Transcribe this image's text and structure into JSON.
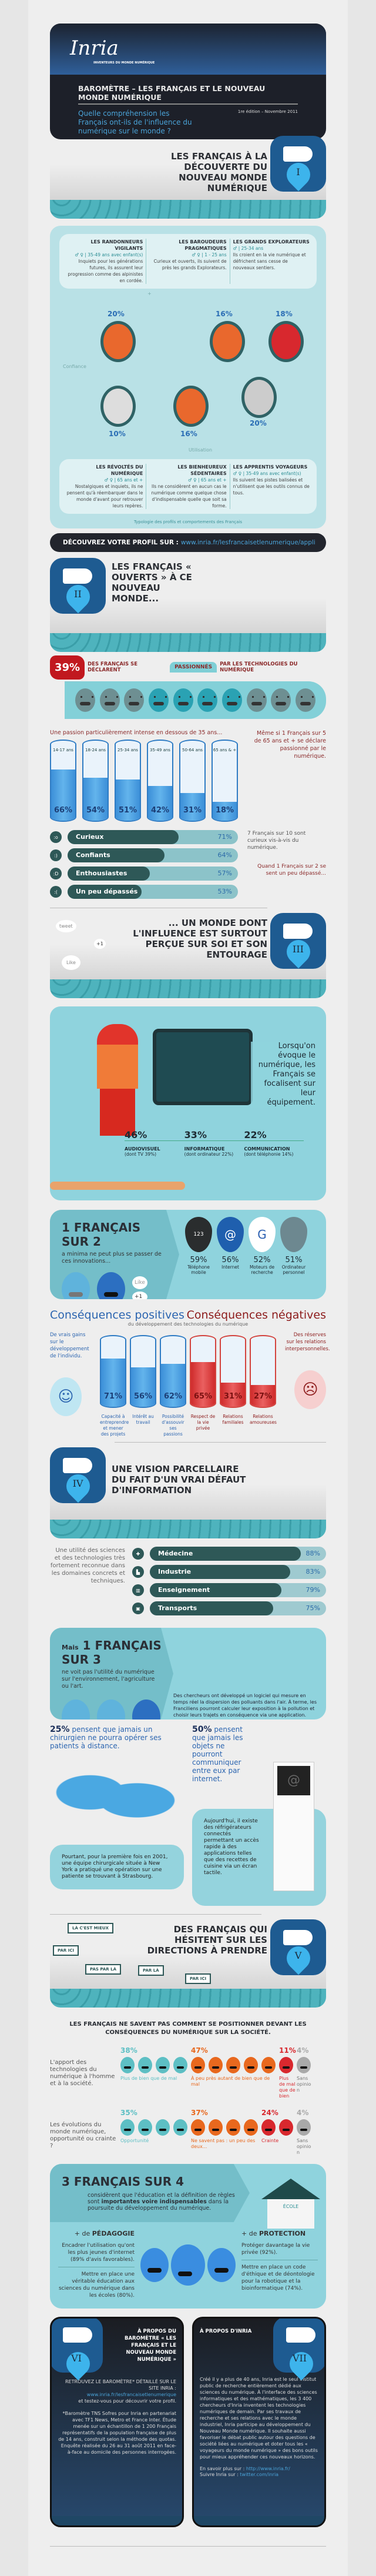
{
  "header": {
    "logo": "Inria",
    "logo_tagline": "INVENTEURS DU MONDE NUMÉRIQUE",
    "title": "BAROMÈTRE – LES FRANÇAIS ET LE NOUVEAU MONDE NUMÉRIQUE",
    "question": "Quelle compréhension les Français ont-ils de l'influence du numérique sur le monde ?",
    "edition": "1re édition – Novembre 2011"
  },
  "sections": [
    {
      "num": "I",
      "title": "LES FRANÇAIS À LA DÉCOUVERTE DU NOUVEAU MONDE NUMÉRIQUE"
    },
    {
      "num": "II",
      "title": "LES FRANÇAIS « OUVERTS » À CE NOUVEAU MONDE..."
    },
    {
      "num": "III",
      "title": "... UN MONDE DONT L'INFLUENCE EST SURTOUT PERÇUE SUR SOI ET SON ENTOURAGE"
    },
    {
      "num": "IV",
      "title": "UNE VISION PARCELLAIRE DU FAIT D'UN VRAI DÉFAUT D'INFORMATION"
    },
    {
      "num": "V",
      "title": "DES FRANÇAIS QUI HÉSITENT SUR LES DIRECTIONS À PRENDRE"
    }
  ],
  "typology": {
    "profiles_top": [
      {
        "name": "LES RANDONNEURS VIGILANTS",
        "meta": "♂ ♀ | 35-49 ans avec enfant(s)",
        "desc": "Inquiets pour les générations futures, ils assurent leur progression comme des alpinistes en cordée.",
        "pct": "20%"
      },
      {
        "name": "LES BAROUDEURS PRAGMATIQUES",
        "meta": "♂ ♀ | 1 - 25 ans",
        "desc": "Curieux et ouverts, ils suivent de près les grands Explorateurs.",
        "pct": "16%"
      },
      {
        "name": "LES GRANDS EXPLORATEURS",
        "meta": "♂ | 25-34 ans",
        "desc": "Ils croient en la vie numérique et défrichent sans cesse de nouveaux sentiers.",
        "pct": "18%"
      }
    ],
    "profiles_bottom": [
      {
        "name": "LES RÉVOLTÉS DU NUMÉRIQUE",
        "meta": "♂ ♀ | 65 ans et +",
        "desc": "Nostalgiques et inquiets, ils ne pensent qu'à réembarquer dans le monde d'avant pour retrouver leurs repères.",
        "pct": "10%"
      },
      {
        "name": "LES BIENHEUREUX SÉDENTAIRES",
        "meta": "♂ ♀ | 65 ans et +",
        "desc": "Ils ne considèrent en aucun cas le numérique comme quelque chose d'indispensable quelle que soit sa forme.",
        "pct": "16%"
      },
      {
        "name": "LES APPRENTIS VOYAGEURS",
        "meta": "♂ ♀ | 35-49 ans avec enfant(s)",
        "desc": "Ils suivent les pistes balisées et n'utilisent que les outils connus de tous.",
        "pct": "20%"
      }
    ],
    "axis_plus": "+",
    "axis_minus": "–",
    "axis_confiance": "Confiance",
    "axis_utilisation": "Utilisation",
    "caption": "Typologie des profils et comportements des Français"
  },
  "discover": {
    "label": "DÉCOUVREZ VOTRE PROFIL SUR :",
    "url": "www.inria.fr/lesfrancaisetlenumerique/appli"
  },
  "passion": {
    "pct": "39%",
    "pre": "DES FRANÇAIS SE DÉCLARENT",
    "word": "PASSIONNÉS",
    "post": "PAR LES TECHNOLOGIES DU NUMÉRIQUE",
    "faces_total": 10,
    "faces_on": [
      3,
      4,
      5,
      6
    ],
    "age_title": "Une passion particulièrement intense en dessous de 35 ans...",
    "age_groups": [
      {
        "label": "14-17 ans",
        "value": 66
      },
      {
        "label": "18-24 ans",
        "value": 54
      },
      {
        "label": "25-34 ans",
        "value": 51
      },
      {
        "label": "35-49 ans",
        "value": 42
      },
      {
        "label": "50-64 ans",
        "value": 31
      },
      {
        "label": "65 ans & +",
        "value": 18
      }
    ],
    "side_note": "Même si 1 Français sur 5 de 65 ans et + se déclare passionné par le numérique."
  },
  "moods": {
    "items": [
      {
        "icon": ":o",
        "label": "Curieux",
        "value": 71
      },
      {
        "icon": ":)",
        "label": "Confiants",
        "value": 64
      },
      {
        "icon": ":D",
        "label": "Enthousiastes",
        "value": 57
      },
      {
        "icon": ":(",
        "label": "Un peu dépassés",
        "value": 53
      }
    ],
    "note1": "7 Français sur 10 sont curieux vis-à-vis du numérique.",
    "note2": "Quand 1 Français sur 2 se sent un peu dépassé..."
  },
  "social_bubbles": {
    "tweet": "tweet",
    "like": "Like",
    "plus_one": "+1"
  },
  "equipment": {
    "text": "Lorsqu'on évoque le numérique, les Français se focalisent sur leur équipement.",
    "stats": [
      {
        "value": "46%",
        "label": "AUDIOVISUEL",
        "sub": "(dont TV 39%)"
      },
      {
        "value": "33%",
        "label": "INFORMATIQUE",
        "sub": "(dont ordinateur 22%)"
      },
      {
        "value": "22%",
        "label": "COMMUNICATION",
        "sub": "(dont téléphonie 14%)"
      }
    ]
  },
  "one_in_two": {
    "title": "1 FRANÇAIS SUR 2",
    "sub": "a minima ne peut plus se passer de ces innovations...",
    "like": "Like",
    "plus_one": "+1",
    "items": [
      {
        "icon": "phone-keypad-icon",
        "glyph": "123",
        "value": "59%",
        "label": "Téléphone mobile",
        "color": "#2a2d2e"
      },
      {
        "icon": "at-sign-icon",
        "glyph": "@",
        "value": "56%",
        "label": "Internet",
        "color": "#1f5fae"
      },
      {
        "icon": "google-g-icon",
        "glyph": "G",
        "value": "52%",
        "label": "Moteurs de recherche",
        "color": "#ffffff"
      },
      {
        "icon": "apple-icon",
        "glyph": "",
        "value": "51%",
        "label": "Ordinateur personnel",
        "color": "#6d8890"
      }
    ]
  },
  "consequences": {
    "pos_title": "Conséquences positives",
    "neg_title": "Conséquences négatives",
    "subtitle": "du développement des technologies du numérique",
    "pos_note": "De vrais gains sur le développement de l'individu.",
    "neg_note": "Des réserves sur les relations interpersonnelles.",
    "items": [
      {
        "label": "Capacité à entreprendre et mener des projets",
        "value": 71,
        "tone": "pos"
      },
      {
        "label": "Intérêt au travail",
        "value": 56,
        "tone": "pos"
      },
      {
        "label": "Possibilité d'assouvir ses passions",
        "value": 62,
        "tone": "pos"
      },
      {
        "label": "Respect de la vie privée",
        "value": 65,
        "tone": "neg"
      },
      {
        "label": "Relations familiales",
        "value": 31,
        "tone": "neg"
      },
      {
        "label": "Relations amoureuses",
        "value": 27,
        "tone": "neg"
      }
    ]
  },
  "domains": {
    "intro": "Une utilité des sciences et des technologies très fortement reconnue dans les domaines concrets et techniques.",
    "items": [
      {
        "icon": "✚",
        "label": "Médecine",
        "value": 88
      },
      {
        "icon": "▙",
        "label": "Industrie",
        "value": 83
      },
      {
        "icon": "▥",
        "label": "Enseignement",
        "value": 79
      },
      {
        "icon": "▣",
        "label": "Transports",
        "value": 75
      }
    ]
  },
  "one_in_three": {
    "prefix": "Mais",
    "title": "1 FRANÇAIS SUR 3",
    "sub": "ne voit pas l'utilité du numérique sur l'environnement, l'agriculture ou l'art.",
    "note": "Des chercheurs ont développé un logiciel qui mesure en temps réel la dispersion des polluants dans l'air. À terme, les Franciliens pourront calculer leur exposition à la pollution et choisir leurs trajets en conséquence via une application."
  },
  "facts": [
    {
      "pct": "25%",
      "text": "pensent que jamais un chirurgien ne pourra opérer ses patients à distance.",
      "box": "Pourtant, pour la première fois en 2001, une équipe chirurgicale située à New York a pratiqué une opération sur une patiente se trouvant à Strasbourg."
    },
    {
      "pct": "50%",
      "text": "pensent que jamais les objets ne pourront communiquer entre eux par internet.",
      "box": "Aujourd'hui, il existe des réfrigérateurs connectés permettant un accès rapide à des applications telles que des recettes de cuisine via un écran tactile."
    }
  ],
  "signs": [
    "LÀ C'EST MIEUX",
    "PAR ICI",
    "PAS PAR LÀ",
    "PAR LÀ",
    "PAR ICI"
  ],
  "hesitation": {
    "title": "LES FRANÇAIS NE SAVENT PAS COMMENT SE POSITIONNER DEVANT LES CONSÉQUENCES DU NUMÉRIQUE SUR LA SOCIÉTÉ.",
    "rows": [
      {
        "question": "L'apport des technologies du numérique à l'homme et à la société.",
        "groups": [
          {
            "pct": "38%",
            "label": "Plus de bien que de mal",
            "faces": 4,
            "color": "#5dbfc4"
          },
          {
            "pct": "47%",
            "label": "À peu près autant de bien que de mal",
            "faces": 5,
            "color": "#e8681e"
          },
          {
            "pct": "11%",
            "label": "Plus de mal que de bien",
            "faces": 1,
            "color": "#d8282e"
          },
          {
            "pct": "4%",
            "label": "Sans opinion",
            "faces": 1,
            "color": "#a9a9a9"
          }
        ]
      },
      {
        "question": "Les évolutions du monde numérique, opportunité ou crainte ?",
        "groups": [
          {
            "pct": "35%",
            "label": "Opportunité",
            "faces": 4,
            "color": "#5dbfc4"
          },
          {
            "pct": "37%",
            "label": "Ne savent pas : un peu des deux...",
            "faces": 4,
            "color": "#e8681e"
          },
          {
            "pct": "24%",
            "label": "Crainte",
            "faces": 2,
            "color": "#d8282e"
          },
          {
            "pct": "4%",
            "label": "Sans opinion",
            "faces": 1,
            "color": "#a9a9a9"
          }
        ]
      }
    ]
  },
  "three_in_four": {
    "title": "3 FRANÇAIS SUR 4",
    "desc_pre": "considèrent que l'éducation et la définition de règles sont",
    "desc_bold": "importantes voire indispensables",
    "desc_post": "dans la poursuite du développement du numérique.",
    "school": "ÉCOLE",
    "pedagogy_pre": "+ de",
    "pedagogy": "PÉDAGOGIE",
    "pedagogy_items": [
      "Encadrer l'utilisation qu'ont les plus jeunes d'internet (89% d'avis favorables).",
      "Mettre en place une véritable éducation aux sciences du numérique dans les écoles (80%)."
    ],
    "protection_pre": "+ de",
    "protection": "PROTECTION",
    "protection_items": [
      "Protéger davantage la vie privée (92%).",
      "Mettre en place un code d'éthique et de déontologie pour la robotique et la bioinformatique (74%)."
    ]
  },
  "about": {
    "barometre": {
      "num": "VI",
      "title": "À PROPOS DU BAROMÈTRE « LES FRANÇAIS ET LE NOUVEAU MONDE NUMÉRIQUE »",
      "cta": "RETROUVEZ LE BAROMÈTRE* DÉTAILLÉ SUR LE SITE INRIA :",
      "url": "www.inria.fr/lesfrancaisetlenumerique",
      "cta2": "et testez-vous pour découvrir votre profil.",
      "note": "*Baromètre TNS Sofres pour Inria en partenariat avec TF1 News, Metro et France Inter. Étude menée sur un échantillon de 1 200 Français représentatifs de la population française de plus de 14 ans, construit selon la méthode des quotas. Enquête réalisée du 26 au 31 août 2011 en face-à-face au domicile des personnes interrogées."
    },
    "inria": {
      "num": "VII",
      "title": "À PROPOS D'INRIA",
      "text": "Créé il y a plus de 40 ans, Inria est le seul institut public de recherche entièrement dédié aux sciences du numérique. À l'interface des sciences informatiques et des mathématiques, les 3 400 chercheurs d'Inria inventent les technologies numériques de demain. Par ses travaux de recherche et ses relations avec le monde industriel, Inria participe au développement du Nouveau Monde numérique. Il souhaite aussi favoriser le débat public autour des questions de société liées au numérique et doter tous les « voyageurs du monde numérique » des bons outils pour mieux appréhender ces nouveaux horizons.",
      "more_label": "En savoir plus sur :",
      "more_url": "http://www.inria.fr/",
      "follow_label": "Suivre Inria sur :",
      "follow_url": "twitter.com/inria"
    }
  },
  "colors": {
    "navy": "#1e5b91",
    "teal": "#8fd3dd",
    "dark_teal": "#2e5857",
    "red": "#c1181f",
    "blue": "#2c65b0",
    "orange": "#e8681e"
  }
}
